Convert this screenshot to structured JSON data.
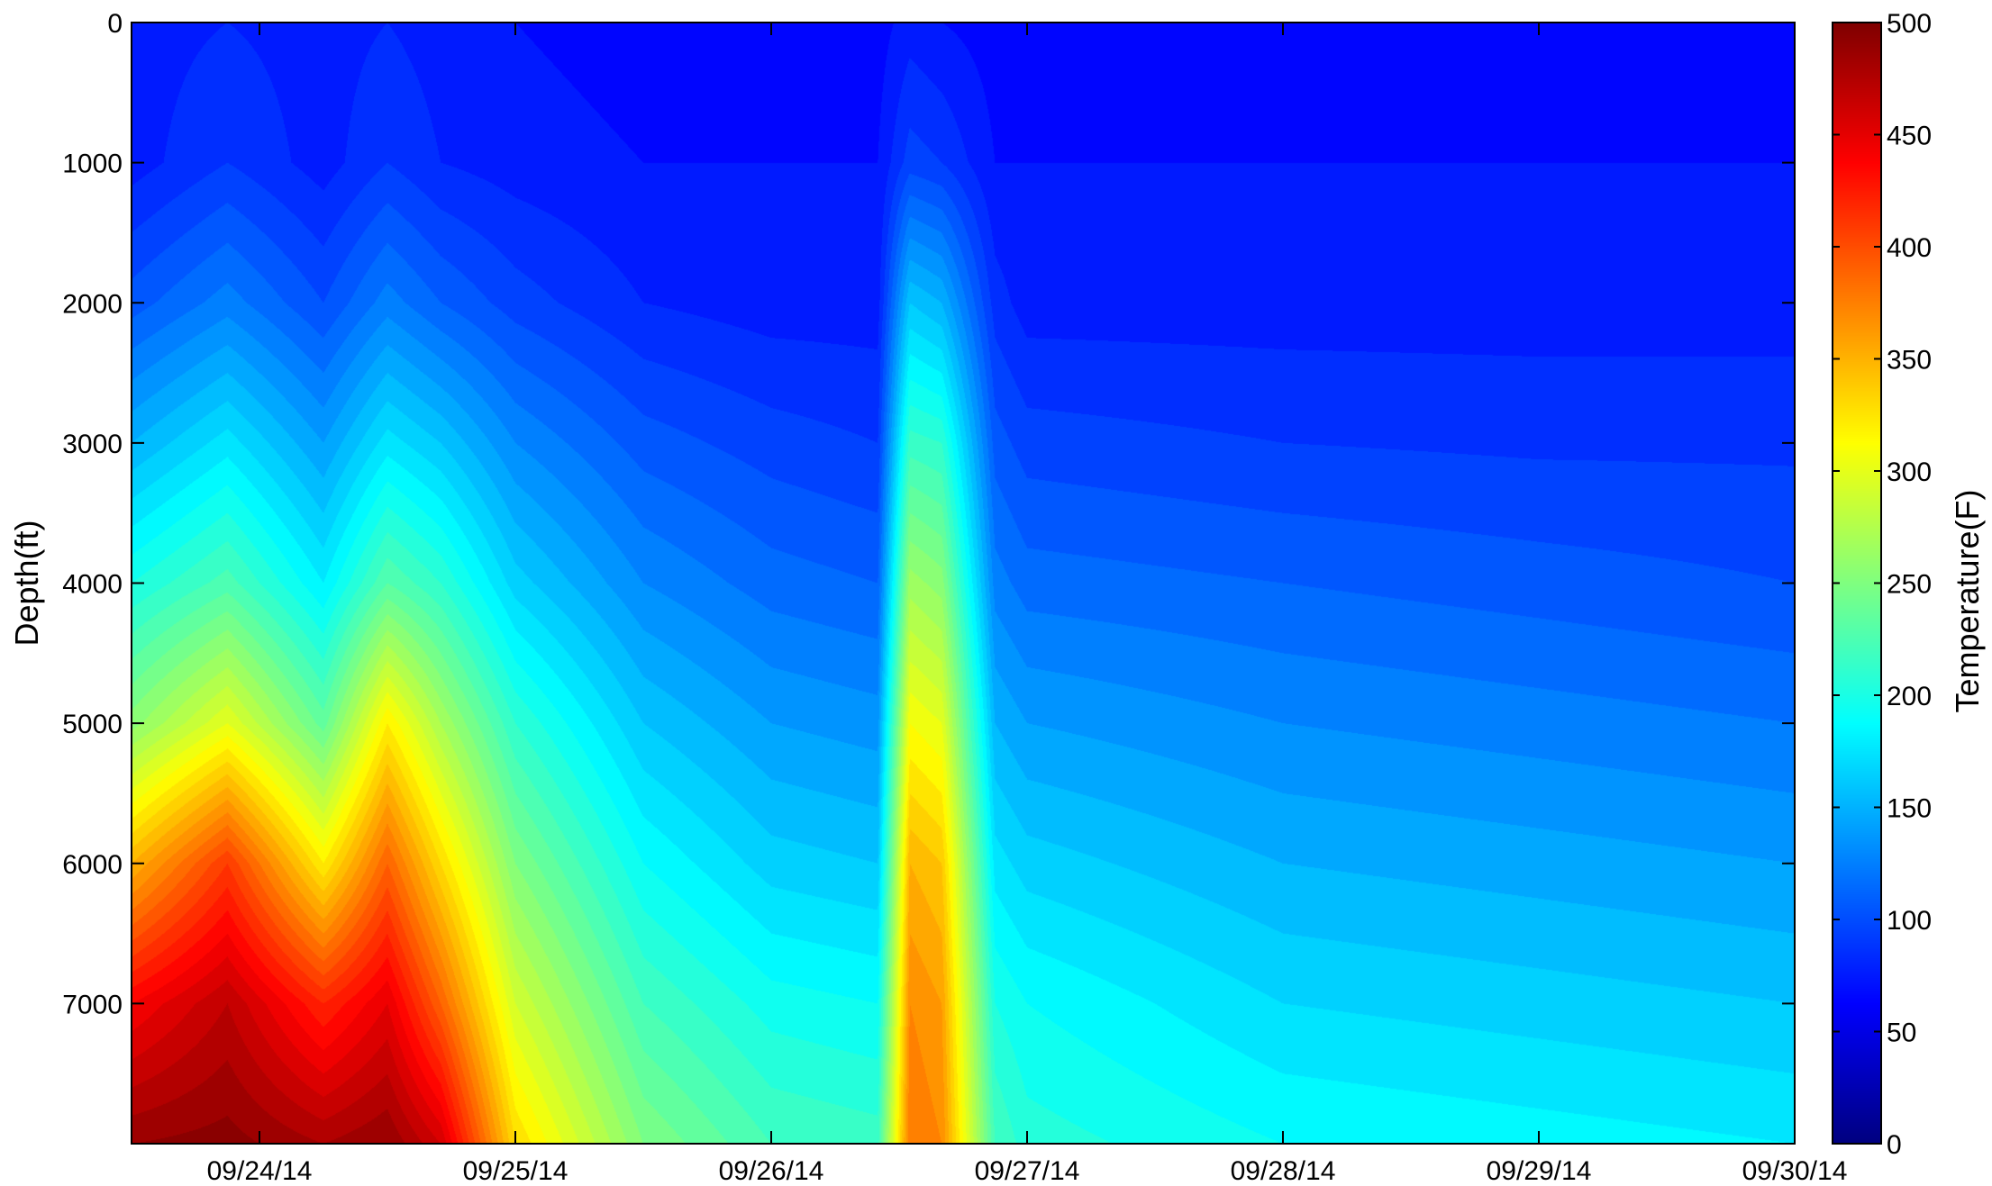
{
  "chart_data": {
    "type": "heatmap",
    "title": "",
    "xlabel": "",
    "ylabel": "Depth(ft)",
    "colorbar_label": "Temperature(F)",
    "colormap": "jet",
    "x_ticks": [
      "09/24/14",
      "09/25/14",
      "09/26/14",
      "09/27/14",
      "09/28/14",
      "09/29/14",
      "09/30/14"
    ],
    "xlim": [
      "09/23/14 12:00",
      "09/30/14 00:00"
    ],
    "y_ticks": [
      0,
      1000,
      2000,
      3000,
      4000,
      5000,
      6000,
      7000
    ],
    "ylim": [
      0,
      8000
    ],
    "y_reversed": true,
    "color_ticks": [
      0,
      50,
      100,
      150,
      200,
      250,
      300,
      350,
      400,
      450,
      500
    ],
    "clim": [
      0,
      500
    ],
    "depths": [
      0,
      1000,
      2000,
      3000,
      4000,
      5000,
      6000,
      7000,
      8000
    ],
    "times": [
      "09/23/14 12:00",
      "09/23/14 21:00",
      "09/24/14 06:00",
      "09/24/14 12:00",
      "09/24/14 17:00",
      "09/25/14 00:00",
      "09/25/14 12:00",
      "09/26/14 00:00",
      "09/26/14 10:00",
      "09/26/14 13:00",
      "09/26/14 16:00",
      "09/26/14 21:00",
      "09/27/14 00:00",
      "09/28/14 00:00",
      "09/29/14 00:00",
      "09/30/14 00:00"
    ],
    "temperature": [
      [
        75,
        75,
        105,
        150,
        200,
        255,
        350,
        440,
        490
      ],
      [
        80,
        90,
        125,
        175,
        225,
        300,
        410,
        470,
        495
      ],
      [
        75,
        75,
        100,
        140,
        180,
        235,
        320,
        420,
        480
      ],
      [
        80,
        90,
        125,
        175,
        230,
        320,
        390,
        450,
        490
      ],
      [
        75,
        80,
        110,
        160,
        210,
        270,
        330,
        390,
        460
      ],
      [
        70,
        75,
        95,
        130,
        165,
        210,
        250,
        290,
        330
      ],
      [
        65,
        70,
        80,
        105,
        130,
        160,
        190,
        220,
        250
      ],
      [
        65,
        70,
        75,
        95,
        115,
        140,
        165,
        195,
        220
      ],
      [
        65,
        70,
        75,
        90,
        110,
        135,
        160,
        190,
        215
      ],
      [
        75,
        95,
        160,
        215,
        265,
        310,
        350,
        370,
        380
      ],
      [
        70,
        90,
        150,
        210,
        255,
        300,
        340,
        360,
        370
      ],
      [
        65,
        70,
        85,
        105,
        125,
        150,
        175,
        200,
        220
      ],
      [
        65,
        70,
        75,
        95,
        115,
        140,
        165,
        190,
        205
      ],
      [
        65,
        70,
        75,
        90,
        110,
        130,
        150,
        170,
        190
      ],
      [
        65,
        70,
        75,
        88,
        105,
        125,
        145,
        165,
        185
      ],
      [
        65,
        70,
        75,
        88,
        100,
        120,
        140,
        160,
        180
      ]
    ]
  }
}
